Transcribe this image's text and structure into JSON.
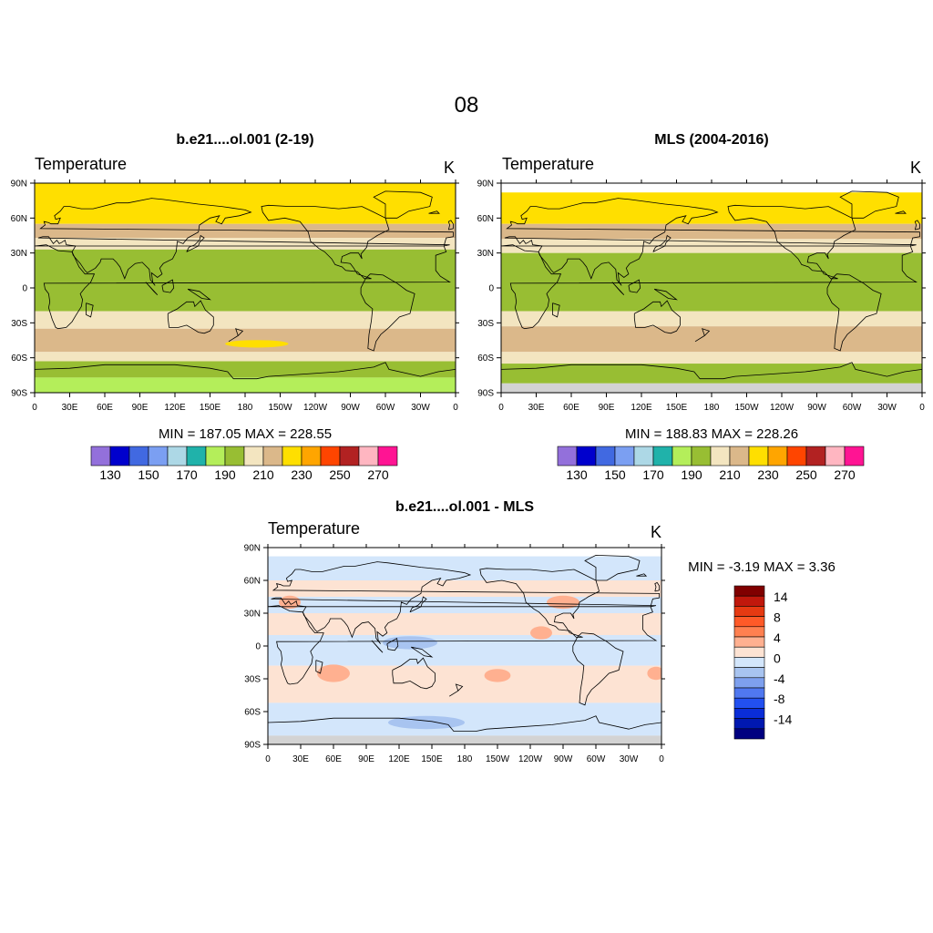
{
  "figure_title": "08",
  "lon_ticks": [
    "0",
    "30E",
    "60E",
    "90E",
    "120E",
    "150E",
    "180",
    "150W",
    "120W",
    "90W",
    "60W",
    "30W",
    "0"
  ],
  "lat_ticks": [
    "90N",
    "60N",
    "30N",
    "0",
    "30S",
    "60S",
    "90S"
  ],
  "panels": [
    {
      "title": "b.e21....ol.001 (2-19)",
      "variable": "Temperature",
      "units": "K",
      "stats": "MIN = 187.05  MAX = 228.55",
      "bands": [
        {
          "lat_from": 90,
          "lat_to": 55,
          "color": "#ffdf00"
        },
        {
          "lat_from": 55,
          "lat_to": 43,
          "color": "#dbb88a"
        },
        {
          "lat_from": 43,
          "lat_to": 33,
          "color": "#f3e5c0"
        },
        {
          "lat_from": 33,
          "lat_to": -20,
          "color": "#98be33"
        },
        {
          "lat_from": -20,
          "lat_to": -35,
          "color": "#f3e5c0"
        },
        {
          "lat_from": -35,
          "lat_to": -55,
          "color": "#dbb88a"
        },
        {
          "lat_from": -55,
          "lat_to": -63,
          "color": "#f3e5c0"
        },
        {
          "lat_from": -63,
          "lat_to": -77,
          "color": "#98be33"
        },
        {
          "lat_from": -77,
          "lat_to": -90,
          "color": "#b4ee5a"
        }
      ],
      "missing_below_lat": null
    },
    {
      "title": "MLS (2004-2016)",
      "variable": "Temperature",
      "units": "K",
      "stats": "MIN = 188.83  MAX = 228.26",
      "bands": [
        {
          "lat_from": 82,
          "lat_to": 55,
          "color": "#ffdf00"
        },
        {
          "lat_from": 55,
          "lat_to": 42,
          "color": "#dbb88a"
        },
        {
          "lat_from": 42,
          "lat_to": 30,
          "color": "#f3e5c0"
        },
        {
          "lat_from": 30,
          "lat_to": -20,
          "color": "#98be33"
        },
        {
          "lat_from": -20,
          "lat_to": -33,
          "color": "#f3e5c0"
        },
        {
          "lat_from": -33,
          "lat_to": -55,
          "color": "#dbb88a"
        },
        {
          "lat_from": -55,
          "lat_to": -65,
          "color": "#f3e5c0"
        },
        {
          "lat_from": -65,
          "lat_to": -82,
          "color": "#98be33"
        }
      ],
      "missing_below_lat": -82
    },
    {
      "title": "b.e21....ol.001 - MLS",
      "variable": "Temperature",
      "units": "K",
      "stats": "MIN =  -3.19  MAX =   3.36",
      "bands": [
        {
          "lat_from": 82,
          "lat_to": 60,
          "color": "#d3e6fb"
        },
        {
          "lat_from": 60,
          "lat_to": 45,
          "color": "#fde3d3"
        },
        {
          "lat_from": 45,
          "lat_to": 30,
          "color": "#d3e6fb"
        },
        {
          "lat_from": 30,
          "lat_to": 10,
          "color": "#fde3d3"
        },
        {
          "lat_from": 10,
          "lat_to": -18,
          "color": "#d3e6fb"
        },
        {
          "lat_from": -18,
          "lat_to": -52,
          "color": "#fde3d3"
        },
        {
          "lat_from": -52,
          "lat_to": -82,
          "color": "#d3e6fb"
        }
      ],
      "missing_below_lat": -82
    }
  ],
  "abs_colorbar": {
    "colors": [
      "#9370db",
      "#0000cd",
      "#4169e1",
      "#7b9ff2",
      "#add8e6",
      "#20b2aa",
      "#b4ee5a",
      "#98be33",
      "#f3e5c0",
      "#dbb88a",
      "#ffdf00",
      "#ffa500",
      "#ff4500",
      "#b22222",
      "#ffb6c1",
      "#ff1493"
    ],
    "labels": [
      "130",
      "150",
      "170",
      "190",
      "210",
      "230",
      "250",
      "270"
    ]
  },
  "diff_colorbar": {
    "colors": [
      "#800000",
      "#c0180c",
      "#e63a12",
      "#ff5a28",
      "#ff8050",
      "#ffb090",
      "#fde3d3",
      "#d3e6fb",
      "#a8c4f0",
      "#7ea0ee",
      "#5078f0",
      "#2250f0",
      "#0a2dd8",
      "#0018b0",
      "#000080"
    ],
    "labels": [
      "14",
      "8",
      "4",
      "0",
      "-4",
      "-8",
      "-14"
    ]
  },
  "missing_color": "#d3d3d3",
  "coastline_color": "#000000"
}
